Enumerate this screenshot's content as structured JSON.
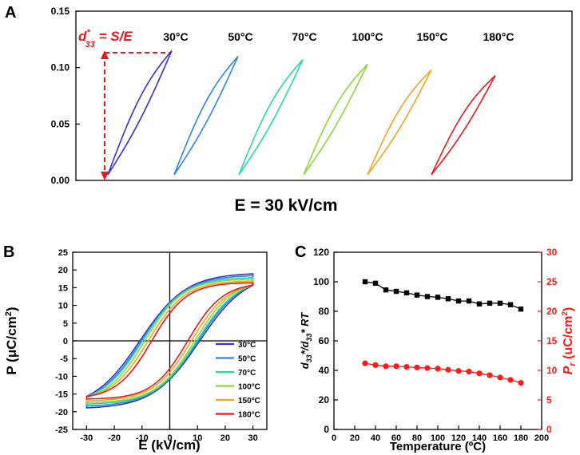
{
  "chart_data": [
    {
      "panel": "A",
      "type": "line",
      "title": "",
      "xlabel": "E = 30 kV/cm",
      "ylabel": "",
      "ylim": [
        0,
        0.15
      ],
      "yticks": [
        "0.00",
        "0.05",
        "0.10",
        "0.15"
      ],
      "annotation": {
        "d": "d",
        "star": "*",
        "sub": "33",
        "rest": " = S/E"
      },
      "series": [
        {
          "name": "30°C",
          "color": "#3a2fd1",
          "peak": 0.115
        },
        {
          "name": "50°C",
          "color": "#2f86e0",
          "peak": 0.11
        },
        {
          "name": "70°C",
          "color": "#27d8a6",
          "peak": 0.107
        },
        {
          "name": "100°C",
          "color": "#8ed83a",
          "peak": 0.103
        },
        {
          "name": "150°C",
          "color": "#f2a51f",
          "peak": 0.098
        },
        {
          "name": "180°C",
          "color": "#e8191d",
          "peak": 0.093
        }
      ]
    },
    {
      "panel": "B",
      "type": "line",
      "xlabel": "E (kV/cm)",
      "ylabel_main": "P (μC/cm",
      "ylabel_sup": "2",
      "ylabel_end": ")",
      "xlim": [
        -35,
        35
      ],
      "ylim": [
        -25,
        25
      ],
      "xticks": [
        "-30",
        "-20",
        "-10",
        "0",
        "10",
        "20",
        "30"
      ],
      "yticks": [
        "-25",
        "-20",
        "-15",
        "-10",
        "-5",
        "0",
        "5",
        "10",
        "15",
        "20",
        "25"
      ],
      "series": [
        {
          "name": "30",
          "unit": "°C",
          "color": "#3a2fd1",
          "Pmax": 19.2,
          "Pr": 10.9,
          "Ec": 10.8
        },
        {
          "name": "50",
          "unit": "°C",
          "color": "#2f86e0",
          "Pmax": 18.6,
          "Pr": 10.6,
          "Ec": 10.2
        },
        {
          "name": "70",
          "unit": "°C",
          "color": "#27d8a6",
          "Pmax": 18.0,
          "Pr": 10.4,
          "Ec": 9.8
        },
        {
          "name": "100",
          "unit": "°C",
          "color": "#8ed83a",
          "Pmax": 17.5,
          "Pr": 10.0,
          "Ec": 9.0
        },
        {
          "name": "150",
          "unit": "°C",
          "color": "#f2a51f",
          "Pmax": 17.0,
          "Pr": 8.9,
          "Ec": 7.8
        },
        {
          "name": "180",
          "unit": "°C",
          "color": "#e8191d",
          "Pmax": 16.5,
          "Pr": 7.8,
          "Ec": 6.5
        }
      ]
    },
    {
      "panel": "C",
      "type": "line",
      "xlabel": "Temperature (ºC)",
      "xlim": [
        0,
        200
      ],
      "xticks": [
        "0",
        "20",
        "40",
        "60",
        "80",
        "100",
        "120",
        "140",
        "160",
        "180",
        "200"
      ],
      "ylabel_left": {
        "d1": "d",
        "s1": "33",
        "mid": "*/d",
        "s2": "33",
        "end": "* RT"
      },
      "ylim_left": [
        0,
        120
      ],
      "yticks_left": [
        "0",
        "20",
        "40",
        "60",
        "80",
        "100",
        "120"
      ],
      "ylabel_right": {
        "p": "P",
        "sub": "r",
        "mid": " (uC/cm",
        "sup": "2",
        "end": ")"
      },
      "ylim_right": [
        0,
        30
      ],
      "yticks_right": [
        "0",
        "5",
        "10",
        "15",
        "20",
        "25",
        "30"
      ],
      "x": [
        30,
        40,
        50,
        60,
        70,
        80,
        90,
        100,
        110,
        120,
        130,
        140,
        150,
        160,
        170,
        180
      ],
      "series": [
        {
          "name": "d33*/d33* RT",
          "axis": "left",
          "color": "#000000",
          "values": [
            100,
            99,
            94.5,
            93.5,
            92.5,
            91,
            90,
            89.5,
            88.5,
            87,
            87,
            85,
            85.5,
            85.5,
            84.5,
            81.5
          ]
        },
        {
          "name": "Pr",
          "axis": "right",
          "color": "#ff1a1a",
          "values": [
            11.2,
            10.9,
            10.7,
            10.7,
            10.6,
            10.5,
            10.4,
            10.3,
            10.1,
            9.9,
            9.8,
            9.5,
            9.2,
            8.8,
            8.4,
            7.9
          ]
        }
      ]
    }
  ],
  "labels": {
    "a": "A",
    "b": "B",
    "c": "C"
  }
}
